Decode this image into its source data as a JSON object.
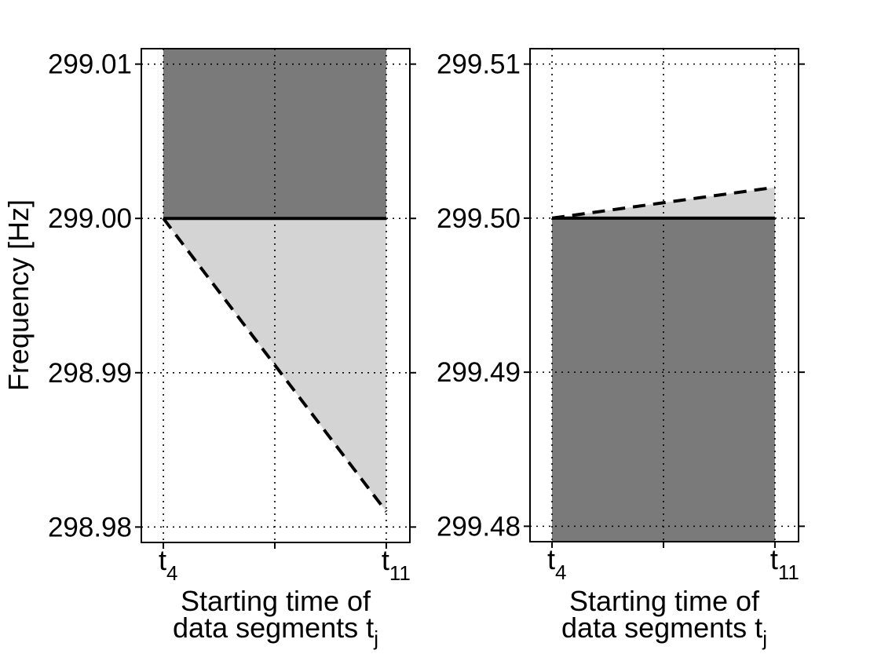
{
  "figure": {
    "background": "#ffffff",
    "ylabel": "Frequency [Hz]",
    "xlabel_line1": "Starting time of",
    "xlabel_line2": "data segments t",
    "xlabel_sub": "j"
  },
  "colors": {
    "dark": "#7a7a7a",
    "light": "#d4d4d4",
    "line": "#000000",
    "grid": "#000000",
    "axis": "#000000"
  },
  "chart_data": [
    {
      "type": "area",
      "panel": "left",
      "title": "",
      "xlabel": "Starting time of data segments t_j",
      "ylabel": "Frequency [Hz]",
      "grid": true,
      "ylim": [
        298.979,
        299.011
      ],
      "yticks": [
        {
          "value": 299.01,
          "label": "299.01"
        },
        {
          "value": 299.0,
          "label": "299.00"
        },
        {
          "value": 298.99,
          "label": "298.99"
        },
        {
          "value": 298.98,
          "label": "298.98"
        }
      ],
      "xticks": [
        {
          "frac": 0.082,
          "base": "t",
          "sub": "4"
        },
        {
          "frac": 0.497,
          "base": "",
          "sub": ""
        },
        {
          "frac": 0.912,
          "base": "t",
          "sub": "11"
        }
      ],
      "regions": [
        {
          "name": "dark-band-above-signal",
          "color_key": "dark",
          "vertices": [
            [
              0.082,
              299.011
            ],
            [
              0.912,
              299.011
            ],
            [
              0.912,
              299.0
            ],
            [
              0.082,
              299.0
            ]
          ]
        },
        {
          "name": "light-spindown-wedge",
          "color_key": "light",
          "vertices": [
            [
              0.082,
              299.0
            ],
            [
              0.912,
              299.0
            ],
            [
              0.912,
              298.981
            ]
          ]
        }
      ],
      "lines": [
        {
          "name": "signal-frequency-solid-line",
          "style": "solid",
          "x": [
            0.082,
            0.912
          ],
          "freq": [
            299.0,
            299.0
          ]
        },
        {
          "name": "drift-boundary-dashed-line",
          "style": "dashed",
          "x": [
            0.082,
            0.912
          ],
          "freq": [
            299.0,
            298.981
          ]
        }
      ]
    },
    {
      "type": "area",
      "panel": "right",
      "title": "",
      "xlabel": "Starting time of data segments t_j",
      "ylabel": "",
      "grid": true,
      "ylim": [
        299.479,
        299.511
      ],
      "yticks": [
        {
          "value": 299.51,
          "label": "299.51"
        },
        {
          "value": 299.5,
          "label": "299.50"
        },
        {
          "value": 299.49,
          "label": "299.49"
        },
        {
          "value": 299.48,
          "label": "299.48"
        }
      ],
      "xticks": [
        {
          "frac": 0.082,
          "base": "t",
          "sub": "4"
        },
        {
          "frac": 0.497,
          "base": "",
          "sub": ""
        },
        {
          "frac": 0.912,
          "base": "t",
          "sub": "11"
        }
      ],
      "regions": [
        {
          "name": "dark-band-below-signal",
          "color_key": "dark",
          "vertices": [
            [
              0.082,
              299.5
            ],
            [
              0.912,
              299.5
            ],
            [
              0.912,
              299.479
            ],
            [
              0.082,
              299.479
            ]
          ]
        },
        {
          "name": "light-spinup-wedge",
          "color_key": "light",
          "vertices": [
            [
              0.082,
              299.5
            ],
            [
              0.912,
              299.502
            ],
            [
              0.912,
              299.5
            ]
          ]
        }
      ],
      "lines": [
        {
          "name": "signal-frequency-solid-line",
          "style": "solid",
          "x": [
            0.082,
            0.912
          ],
          "freq": [
            299.5,
            299.5
          ]
        },
        {
          "name": "drift-boundary-dashed-line",
          "style": "dashed",
          "x": [
            0.082,
            0.912
          ],
          "freq": [
            299.5,
            299.502
          ]
        }
      ]
    }
  ]
}
